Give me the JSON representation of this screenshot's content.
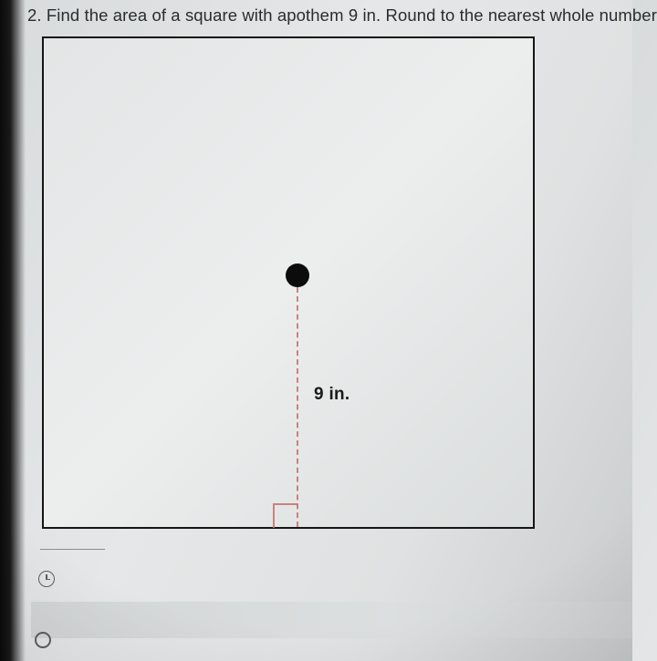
{
  "question": {
    "number": "2.",
    "text": "Find the area of a square with apothem 9 in. Round to the nearest whole number"
  },
  "figure": {
    "type": "square-diagram",
    "apothem_label": "9 in.",
    "apothem_value": 9,
    "apothem_unit": "in",
    "outline_color": "#151515",
    "apothem_line_color": "#c96f6f",
    "center_dot_color": "#0c0c0c",
    "background_gradient": [
      "#e3e5e6",
      "#eceeee",
      "#dadddd"
    ],
    "right_angle_marker": true,
    "line_style": "dashed"
  },
  "ui": {
    "clock_icon": "clock",
    "radio_state": "unselected"
  }
}
